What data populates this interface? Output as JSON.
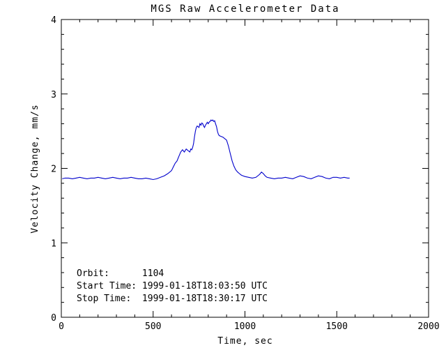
{
  "chart_data": {
    "type": "line",
    "title": "MGS Raw Accelerometer Data",
    "xlabel": "Time, sec",
    "ylabel": "Velocity Change, mm/s",
    "xlim": [
      0,
      2000
    ],
    "ylim": [
      0,
      4
    ],
    "x_ticks": [
      0,
      500,
      1000,
      1500,
      2000
    ],
    "y_ticks": [
      0,
      1,
      2,
      3,
      4
    ],
    "x_minor_interval": 100,
    "y_minor_interval": 0.2,
    "grid": false,
    "legend": false,
    "background": "#ffffff",
    "axis_color": "#000000",
    "line_color": "#0000cc",
    "annotations": [
      "Orbit:      1104",
      "Start Time: 1999-01-18T18:03:50 UTC",
      "Stop Time:  1999-01-18T18:30:17 UTC"
    ],
    "series": [
      {
        "name": "velocity-change",
        "points": [
          [
            5,
            1.86
          ],
          [
            20,
            1.87
          ],
          [
            40,
            1.87
          ],
          [
            60,
            1.86
          ],
          [
            80,
            1.87
          ],
          [
            100,
            1.88
          ],
          [
            120,
            1.87
          ],
          [
            140,
            1.86
          ],
          [
            160,
            1.87
          ],
          [
            180,
            1.87
          ],
          [
            200,
            1.88
          ],
          [
            220,
            1.87
          ],
          [
            240,
            1.86
          ],
          [
            260,
            1.87
          ],
          [
            280,
            1.88
          ],
          [
            300,
            1.87
          ],
          [
            320,
            1.86
          ],
          [
            340,
            1.87
          ],
          [
            360,
            1.87
          ],
          [
            380,
            1.88
          ],
          [
            400,
            1.87
          ],
          [
            420,
            1.86
          ],
          [
            440,
            1.86
          ],
          [
            460,
            1.87
          ],
          [
            480,
            1.86
          ],
          [
            500,
            1.85
          ],
          [
            520,
            1.86
          ],
          [
            540,
            1.88
          ],
          [
            560,
            1.9
          ],
          [
            580,
            1.93
          ],
          [
            600,
            1.97
          ],
          [
            610,
            2.02
          ],
          [
            620,
            2.07
          ],
          [
            630,
            2.1
          ],
          [
            640,
            2.16
          ],
          [
            650,
            2.22
          ],
          [
            660,
            2.25
          ],
          [
            670,
            2.22
          ],
          [
            680,
            2.26
          ],
          [
            690,
            2.24
          ],
          [
            700,
            2.22
          ],
          [
            705,
            2.26
          ],
          [
            710,
            2.25
          ],
          [
            715,
            2.28
          ],
          [
            720,
            2.33
          ],
          [
            725,
            2.42
          ],
          [
            730,
            2.5
          ],
          [
            735,
            2.55
          ],
          [
            740,
            2.57
          ],
          [
            750,
            2.55
          ],
          [
            755,
            2.6
          ],
          [
            760,
            2.58
          ],
          [
            765,
            2.61
          ],
          [
            770,
            2.6
          ],
          [
            775,
            2.57
          ],
          [
            780,
            2.55
          ],
          [
            785,
            2.58
          ],
          [
            790,
            2.6
          ],
          [
            795,
            2.62
          ],
          [
            800,
            2.6
          ],
          [
            805,
            2.62
          ],
          [
            810,
            2.63
          ],
          [
            815,
            2.65
          ],
          [
            820,
            2.64
          ],
          [
            825,
            2.65
          ],
          [
            830,
            2.63
          ],
          [
            835,
            2.64
          ],
          [
            840,
            2.6
          ],
          [
            845,
            2.56
          ],
          [
            850,
            2.5
          ],
          [
            855,
            2.46
          ],
          [
            860,
            2.44
          ],
          [
            870,
            2.43
          ],
          [
            880,
            2.42
          ],
          [
            890,
            2.4
          ],
          [
            900,
            2.38
          ],
          [
            910,
            2.3
          ],
          [
            920,
            2.2
          ],
          [
            930,
            2.1
          ],
          [
            940,
            2.03
          ],
          [
            950,
            1.98
          ],
          [
            960,
            1.95
          ],
          [
            970,
            1.93
          ],
          [
            980,
            1.91
          ],
          [
            990,
            1.9
          ],
          [
            1000,
            1.89
          ],
          [
            1020,
            1.88
          ],
          [
            1040,
            1.87
          ],
          [
            1060,
            1.88
          ],
          [
            1080,
            1.92
          ],
          [
            1090,
            1.95
          ],
          [
            1100,
            1.93
          ],
          [
            1110,
            1.9
          ],
          [
            1120,
            1.88
          ],
          [
            1140,
            1.87
          ],
          [
            1160,
            1.86
          ],
          [
            1180,
            1.87
          ],
          [
            1200,
            1.87
          ],
          [
            1220,
            1.88
          ],
          [
            1240,
            1.87
          ],
          [
            1260,
            1.86
          ],
          [
            1280,
            1.88
          ],
          [
            1300,
            1.9
          ],
          [
            1320,
            1.89
          ],
          [
            1340,
            1.87
          ],
          [
            1360,
            1.86
          ],
          [
            1380,
            1.88
          ],
          [
            1400,
            1.9
          ],
          [
            1420,
            1.89
          ],
          [
            1440,
            1.87
          ],
          [
            1460,
            1.86
          ],
          [
            1480,
            1.88
          ],
          [
            1500,
            1.88
          ],
          [
            1520,
            1.87
          ],
          [
            1540,
            1.88
          ],
          [
            1560,
            1.87
          ],
          [
            1570,
            1.87
          ]
        ]
      }
    ]
  }
}
